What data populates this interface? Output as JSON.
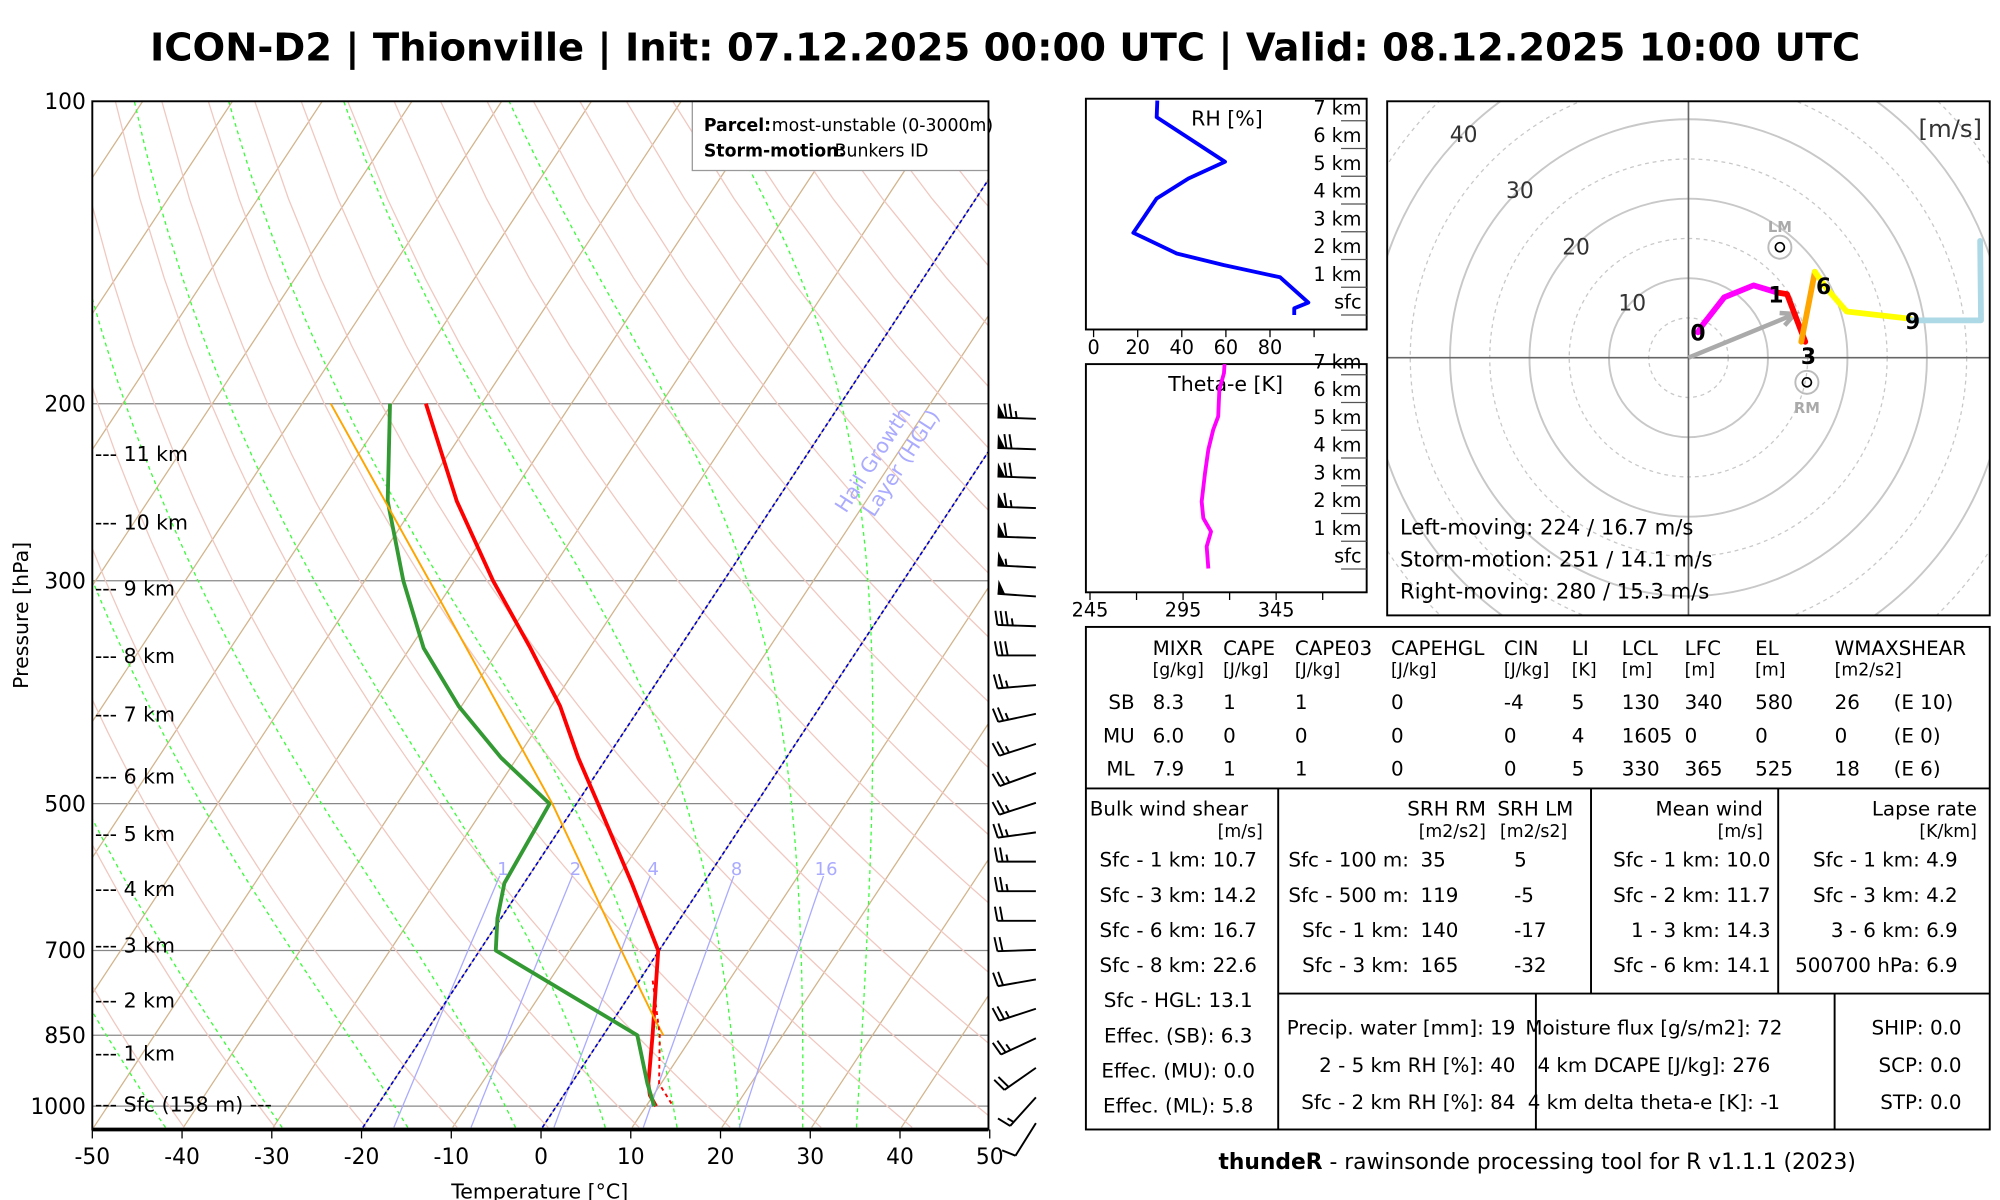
{
  "title": "ICON-D2 | Thionville | Init: 07.12.2025 00:00 UTC | Valid: 08.12.2025 10:00 UTC",
  "footer": {
    "brand": "thundeR",
    "text": " - rawinsonde processing tool for R v1.1.1 (2023)"
  },
  "colors": {
    "temperature": "#ff0000",
    "dewpoint": "#339933",
    "parcel": "#ffa500",
    "isotherm": "#d2b48c",
    "dry_adiabat": "#f0c8c0",
    "moist_adiabat": "#33ff33",
    "mixing_ratio": "#aaaaff",
    "hgl": "#0000cc",
    "rh": "#0000ff",
    "thetae": "#ff00ff"
  },
  "chart_data": [
    {
      "id": "skewt",
      "type": "line",
      "xlabel": "Temperature [°C]",
      "ylabel": "Pressure [hPa]",
      "xlim": [
        -50,
        50
      ],
      "ylim": [
        1050,
        100
      ],
      "x_ticks": [
        "-50",
        "-40",
        "-30",
        "-20",
        "-10",
        "0",
        "10",
        "20",
        "30",
        "40",
        "50"
      ],
      "y_ticks": [
        "100",
        "200",
        "300",
        "500",
        "700",
        "850",
        "1000"
      ],
      "grid": true,
      "series": [
        {
          "name": "Temperature",
          "pressure": [
            200,
            250,
            300,
            350,
            400,
            450,
            500,
            600,
            700,
            850,
            950,
            975,
            1000
          ],
          "values": [
            -66.2,
            -55.6,
            -45.7,
            -36.6,
            -29.0,
            -23.2,
            -17.6,
            -8.0,
            -0.1,
            5.5,
            8.6,
            9.6,
            11.1
          ]
        },
        {
          "name": "Dewpoint",
          "pressure": [
            200,
            250,
            300,
            350,
            400,
            450,
            500,
            600,
            650,
            700,
            850,
            950,
            1000
          ],
          "values": [
            -70.2,
            -63.3,
            -55.7,
            -48.5,
            -40.3,
            -31.8,
            -23.0,
            -22.2,
            -20.4,
            -18.2,
            3.8,
            8.5,
            10.9
          ]
        },
        {
          "name": "Parcel",
          "pressure": [
            200,
            300,
            500,
            700,
            820,
            850
          ],
          "values": [
            -76.8,
            -52.8,
            -22.7,
            -4.2,
            4.6,
            6.7
          ]
        },
        {
          "name": "Virtual temperature",
          "pressure": [
            750,
            850,
            950,
            1000
          ],
          "values": [
            1.5,
            6.3,
            9.8,
            13.0
          ]
        }
      ],
      "height_labels": [
        {
          "label": "--- 11 km",
          "pressure": 224
        },
        {
          "label": "--- 10 km",
          "pressure": 262
        },
        {
          "label": "--- 9 km",
          "pressure": 305
        },
        {
          "label": "--- 8 km",
          "pressure": 356
        },
        {
          "label": "--- 7 km",
          "pressure": 407
        },
        {
          "label": "--- 6 km",
          "pressure": 469
        },
        {
          "label": "--- 5 km",
          "pressure": 535
        },
        {
          "label": "--- 4 km",
          "pressure": 607
        },
        {
          "label": "--- 3 km",
          "pressure": 691
        },
        {
          "label": "--- 2 km",
          "pressure": 784
        },
        {
          "label": "--- 1 km",
          "pressure": 885
        },
        {
          "label": "--- Sfc (158 m) ---",
          "pressure": 995
        }
      ],
      "mixing_ratio_lines": [
        {
          "value": 1,
          "label": "1"
        },
        {
          "value": 2,
          "label": "2"
        },
        {
          "value": 4,
          "label": "4"
        },
        {
          "value": 8,
          "label": "8"
        },
        {
          "value": 16,
          "label": "16"
        }
      ],
      "hgl": {
        "isotherms": [
          -20,
          0
        ],
        "label_line1": "Hail Growth",
        "label_line2": "Layer (HGL)"
      },
      "legend": {
        "parcel_label": "Parcel:",
        "parcel_value": "most-unstable (0-3000m)",
        "storm_label": "Storm-motion:",
        "storm_value": "Bunkers ID",
        "placement": "top-right"
      },
      "wind_barbs": [
        {
          "pressure": 207,
          "dir": 272,
          "speed_kt": 75
        },
        {
          "pressure": 222,
          "dir": 272,
          "speed_kt": 70
        },
        {
          "pressure": 237,
          "dir": 272,
          "speed_kt": 70
        },
        {
          "pressure": 254,
          "dir": 272,
          "speed_kt": 65
        },
        {
          "pressure": 272,
          "dir": 272,
          "speed_kt": 60
        },
        {
          "pressure": 291,
          "dir": 273,
          "speed_kt": 55
        },
        {
          "pressure": 311,
          "dir": 274,
          "speed_kt": 50
        },
        {
          "pressure": 333,
          "dir": 272,
          "speed_kt": 35
        },
        {
          "pressure": 356,
          "dir": 270,
          "speed_kt": 30
        },
        {
          "pressure": 381,
          "dir": 265,
          "speed_kt": 25
        },
        {
          "pressure": 407,
          "dir": 258,
          "speed_kt": 25
        },
        {
          "pressure": 436,
          "dir": 252,
          "speed_kt": 25
        },
        {
          "pressure": 466,
          "dir": 250,
          "speed_kt": 25
        },
        {
          "pressure": 499,
          "dir": 252,
          "speed_kt": 25
        },
        {
          "pressure": 534,
          "dir": 262,
          "speed_kt": 25
        },
        {
          "pressure": 571,
          "dir": 270,
          "speed_kt": 25
        },
        {
          "pressure": 611,
          "dir": 270,
          "speed_kt": 25
        },
        {
          "pressure": 654,
          "dir": 270,
          "speed_kt": 20
        },
        {
          "pressure": 699,
          "dir": 268,
          "speed_kt": 20
        },
        {
          "pressure": 748,
          "dir": 260,
          "speed_kt": 20
        },
        {
          "pressure": 800,
          "dir": 252,
          "speed_kt": 25
        },
        {
          "pressure": 856,
          "dir": 245,
          "speed_kt": 25
        },
        {
          "pressure": 916,
          "dir": 235,
          "speed_kt": 20
        },
        {
          "pressure": 980,
          "dir": 222,
          "speed_kt": 15
        },
        {
          "pressure": 1040,
          "dir": 212,
          "speed_kt": 10
        }
      ]
    },
    {
      "id": "hodograph",
      "type": "line",
      "unit_label": "[m/s]",
      "ring_labels": [
        "10",
        "20",
        "30",
        "40"
      ],
      "xlim": [
        -38,
        38
      ],
      "ylim": [
        -32,
        32
      ],
      "segments": [
        {
          "color": "#ff00ff",
          "points": [
            [
              1.2,
              3.2
            ],
            [
              1.7,
              4.0
            ],
            [
              4.5,
              7.6
            ],
            [
              8.2,
              9.1
            ],
            [
              11.2,
              8.2
            ]
          ]
        },
        {
          "color": "#ff0000",
          "points": [
            [
              11.2,
              8.2
            ],
            [
              12.4,
              8.0
            ],
            [
              14.7,
              2.0
            ]
          ]
        },
        {
          "color": "#ffa500",
          "points": [
            [
              14.2,
              2.0
            ],
            [
              15.9,
              10.8
            ]
          ]
        },
        {
          "color": "#ffff00",
          "points": [
            [
              15.9,
              10.8
            ],
            [
              17.4,
              8.7
            ],
            [
              19.9,
              5.8
            ],
            [
              27.9,
              4.9
            ]
          ]
        },
        {
          "color": "#add8e6",
          "points": [
            [
              27.9,
              4.7
            ],
            [
              36.8,
              4.7
            ],
            [
              36.7,
              14.7
            ]
          ]
        }
      ],
      "height_labels": [
        {
          "label": "0",
          "u": 1.2,
          "v": 3.1
        },
        {
          "label": "1",
          "u": 11.0,
          "v": 7.9
        },
        {
          "label": "3",
          "u": 15.1,
          "v": 0.2
        },
        {
          "label": "6",
          "u": 17.0,
          "v": 9.0
        },
        {
          "label": "9",
          "u": 28.2,
          "v": 4.6
        }
      ],
      "storm_motion": {
        "u": 13.4,
        "v": 5.5
      },
      "left_mover": {
        "label": "LM",
        "u": 11.5,
        "v": 13.9
      },
      "right_mover": {
        "label": "RM",
        "u": 14.9,
        "v": -3.1
      },
      "summary": [
        "Left-moving: 224 / 16.7 m/s",
        "Storm-motion: 251 / 14.1 m/s",
        "Right-moving: 280 / 15.3 m/s"
      ]
    },
    {
      "id": "rh",
      "type": "line",
      "title": "RH [%]",
      "xlim": [
        0,
        100
      ],
      "x_ticks": [
        "0",
        "20",
        "40",
        "60",
        "80"
      ],
      "y_ticks": [
        "sfc",
        "1 km",
        "2 km",
        "3 km",
        "4 km",
        "5 km",
        "6 km",
        "7 km"
      ],
      "height_km": [
        7.73,
        7.13,
        5.52,
        4.92,
        4.2,
        2.96,
        2.22,
        1.8,
        1.36,
        0.45,
        0.24,
        0.0
      ],
      "values": [
        28.9,
        28.6,
        59.6,
        43,
        28.6,
        18,
        37.7,
        58.9,
        84.6,
        97.4,
        91,
        91
      ]
    },
    {
      "id": "thetae",
      "type": "line",
      "title": "Theta-e [K]",
      "xlim": [
        245,
        395
      ],
      "x_ticks": [
        "245",
        "295",
        "345"
      ],
      "y_ticks": [
        "sfc",
        "1 km",
        "2 km",
        "3 km",
        "4 km",
        "5 km",
        "6 km",
        "7 km"
      ],
      "height_km": [
        7.5,
        7.06,
        6.46,
        5.5,
        5.02,
        4.3,
        3.45,
        2.43,
        1.83,
        1.35,
        0.81,
        0.02
      ],
      "values": [
        317.4,
        317,
        314.5,
        313.9,
        311.2,
        308.6,
        306.8,
        305,
        305.9,
        310,
        307.7,
        308.6
      ]
    }
  ],
  "indices": {
    "columns": [
      {
        "name": "MIXR",
        "unit": "[g/kg]"
      },
      {
        "name": "CAPE",
        "unit": "[J/kg]"
      },
      {
        "name": "CAPE03",
        "unit": "[J/kg]"
      },
      {
        "name": "CAPEHGL",
        "unit": "[J/kg]"
      },
      {
        "name": "CIN",
        "unit": "[J/kg]"
      },
      {
        "name": "LI",
        "unit": "[K]"
      },
      {
        "name": "LCL",
        "unit": "[m]"
      },
      {
        "name": "LFC",
        "unit": "[m]"
      },
      {
        "name": "EL",
        "unit": "[m]"
      },
      {
        "name": "WMAXSHEAR",
        "unit": "[m2/s2]"
      }
    ],
    "rows": [
      {
        "label": "SB",
        "values": [
          "8.3",
          "1",
          "1",
          "0",
          "-4",
          "5",
          "130",
          "340",
          "580",
          "26",
          "(E 10)"
        ]
      },
      {
        "label": "MU",
        "values": [
          "6.0",
          "0",
          "0",
          "0",
          "0",
          "4",
          "1605",
          "0",
          "0",
          "0",
          "(E 0)"
        ]
      },
      {
        "label": "ML",
        "values": [
          "7.9",
          "1",
          "1",
          "0",
          "0",
          "5",
          "330",
          "365",
          "525",
          "18",
          "(E 6)"
        ]
      }
    ]
  },
  "bulk_shear": {
    "title": "Bulk wind shear",
    "unit": "[m/s]",
    "rows": [
      {
        "label": "Sfc - 1 km: ",
        "value": "10.7"
      },
      {
        "label": "Sfc - 3 km: ",
        "value": "14.2"
      },
      {
        "label": "Sfc - 6 km: ",
        "value": "16.7"
      },
      {
        "label": "Sfc - 8 km: ",
        "value": "22.6"
      },
      {
        "label": "Sfc - HGL: ",
        "value": "13.1"
      },
      {
        "label": "Effec. (SB): ",
        "value": "6.3"
      },
      {
        "label": "Effec. (MU): ",
        "value": "0.0"
      },
      {
        "label": "Effec. (ML): ",
        "value": "5.8"
      }
    ]
  },
  "srh": {
    "rm_title": "SRH RM",
    "lm_title": "SRH LM",
    "rm_unit": "[m2/s2]",
    "lm_unit": "[m2/s2]",
    "rows": [
      {
        "label": "Sfc - 100 m:",
        "rm": "35",
        "lm": "5"
      },
      {
        "label": "Sfc - 500 m:",
        "rm": "119",
        "lm": "-5"
      },
      {
        "label": "Sfc - 1 km:",
        "rm": "140",
        "lm": "-17"
      },
      {
        "label": "Sfc - 3 km:",
        "rm": "165",
        "lm": "-32"
      }
    ]
  },
  "mean_wind": {
    "title": "Mean wind",
    "unit": "[m/s]",
    "rows": [
      {
        "label": "Sfc - 1 km: ",
        "value": "10.0"
      },
      {
        "label": "Sfc - 2 km: ",
        "value": "11.7"
      },
      {
        "label": "1 - 3 km: ",
        "value": "14.3"
      },
      {
        "label": "Sfc - 6 km: ",
        "value": "14.1"
      }
    ]
  },
  "lapse_rate": {
    "title": "Lapse rate",
    "unit": "[K/km]",
    "rows": [
      {
        "label": "Sfc - 1 km: ",
        "value": "4.9"
      },
      {
        "label": "Sfc - 3 km: ",
        "value": "4.2"
      },
      {
        "label": "3 - 6 km: ",
        "value": "6.9"
      },
      {
        "label": "500700 hPa: ",
        "value": "6.9"
      }
    ]
  },
  "moisture": {
    "rows": [
      {
        "label": "Precip. water [mm]: ",
        "value": "19"
      },
      {
        "label": "2 - 5 km RH [%]: ",
        "value": "40"
      },
      {
        "label": "Sfc - 2 km RH [%]: ",
        "value": "84"
      }
    ]
  },
  "flux": {
    "rows": [
      {
        "label": "Moisture flux [g/s/m2]: ",
        "value": "72"
      },
      {
        "label": "4 km DCAPE [J/kg]: ",
        "value": "276"
      },
      {
        "label": "4 km delta theta-e [K]: ",
        "value": "-1"
      }
    ]
  },
  "composite": {
    "rows": [
      {
        "label": "SHIP: ",
        "value": "0.0"
      },
      {
        "label": "SCP: ",
        "value": "0.0"
      },
      {
        "label": "STP: ",
        "value": "0.0"
      }
    ]
  }
}
